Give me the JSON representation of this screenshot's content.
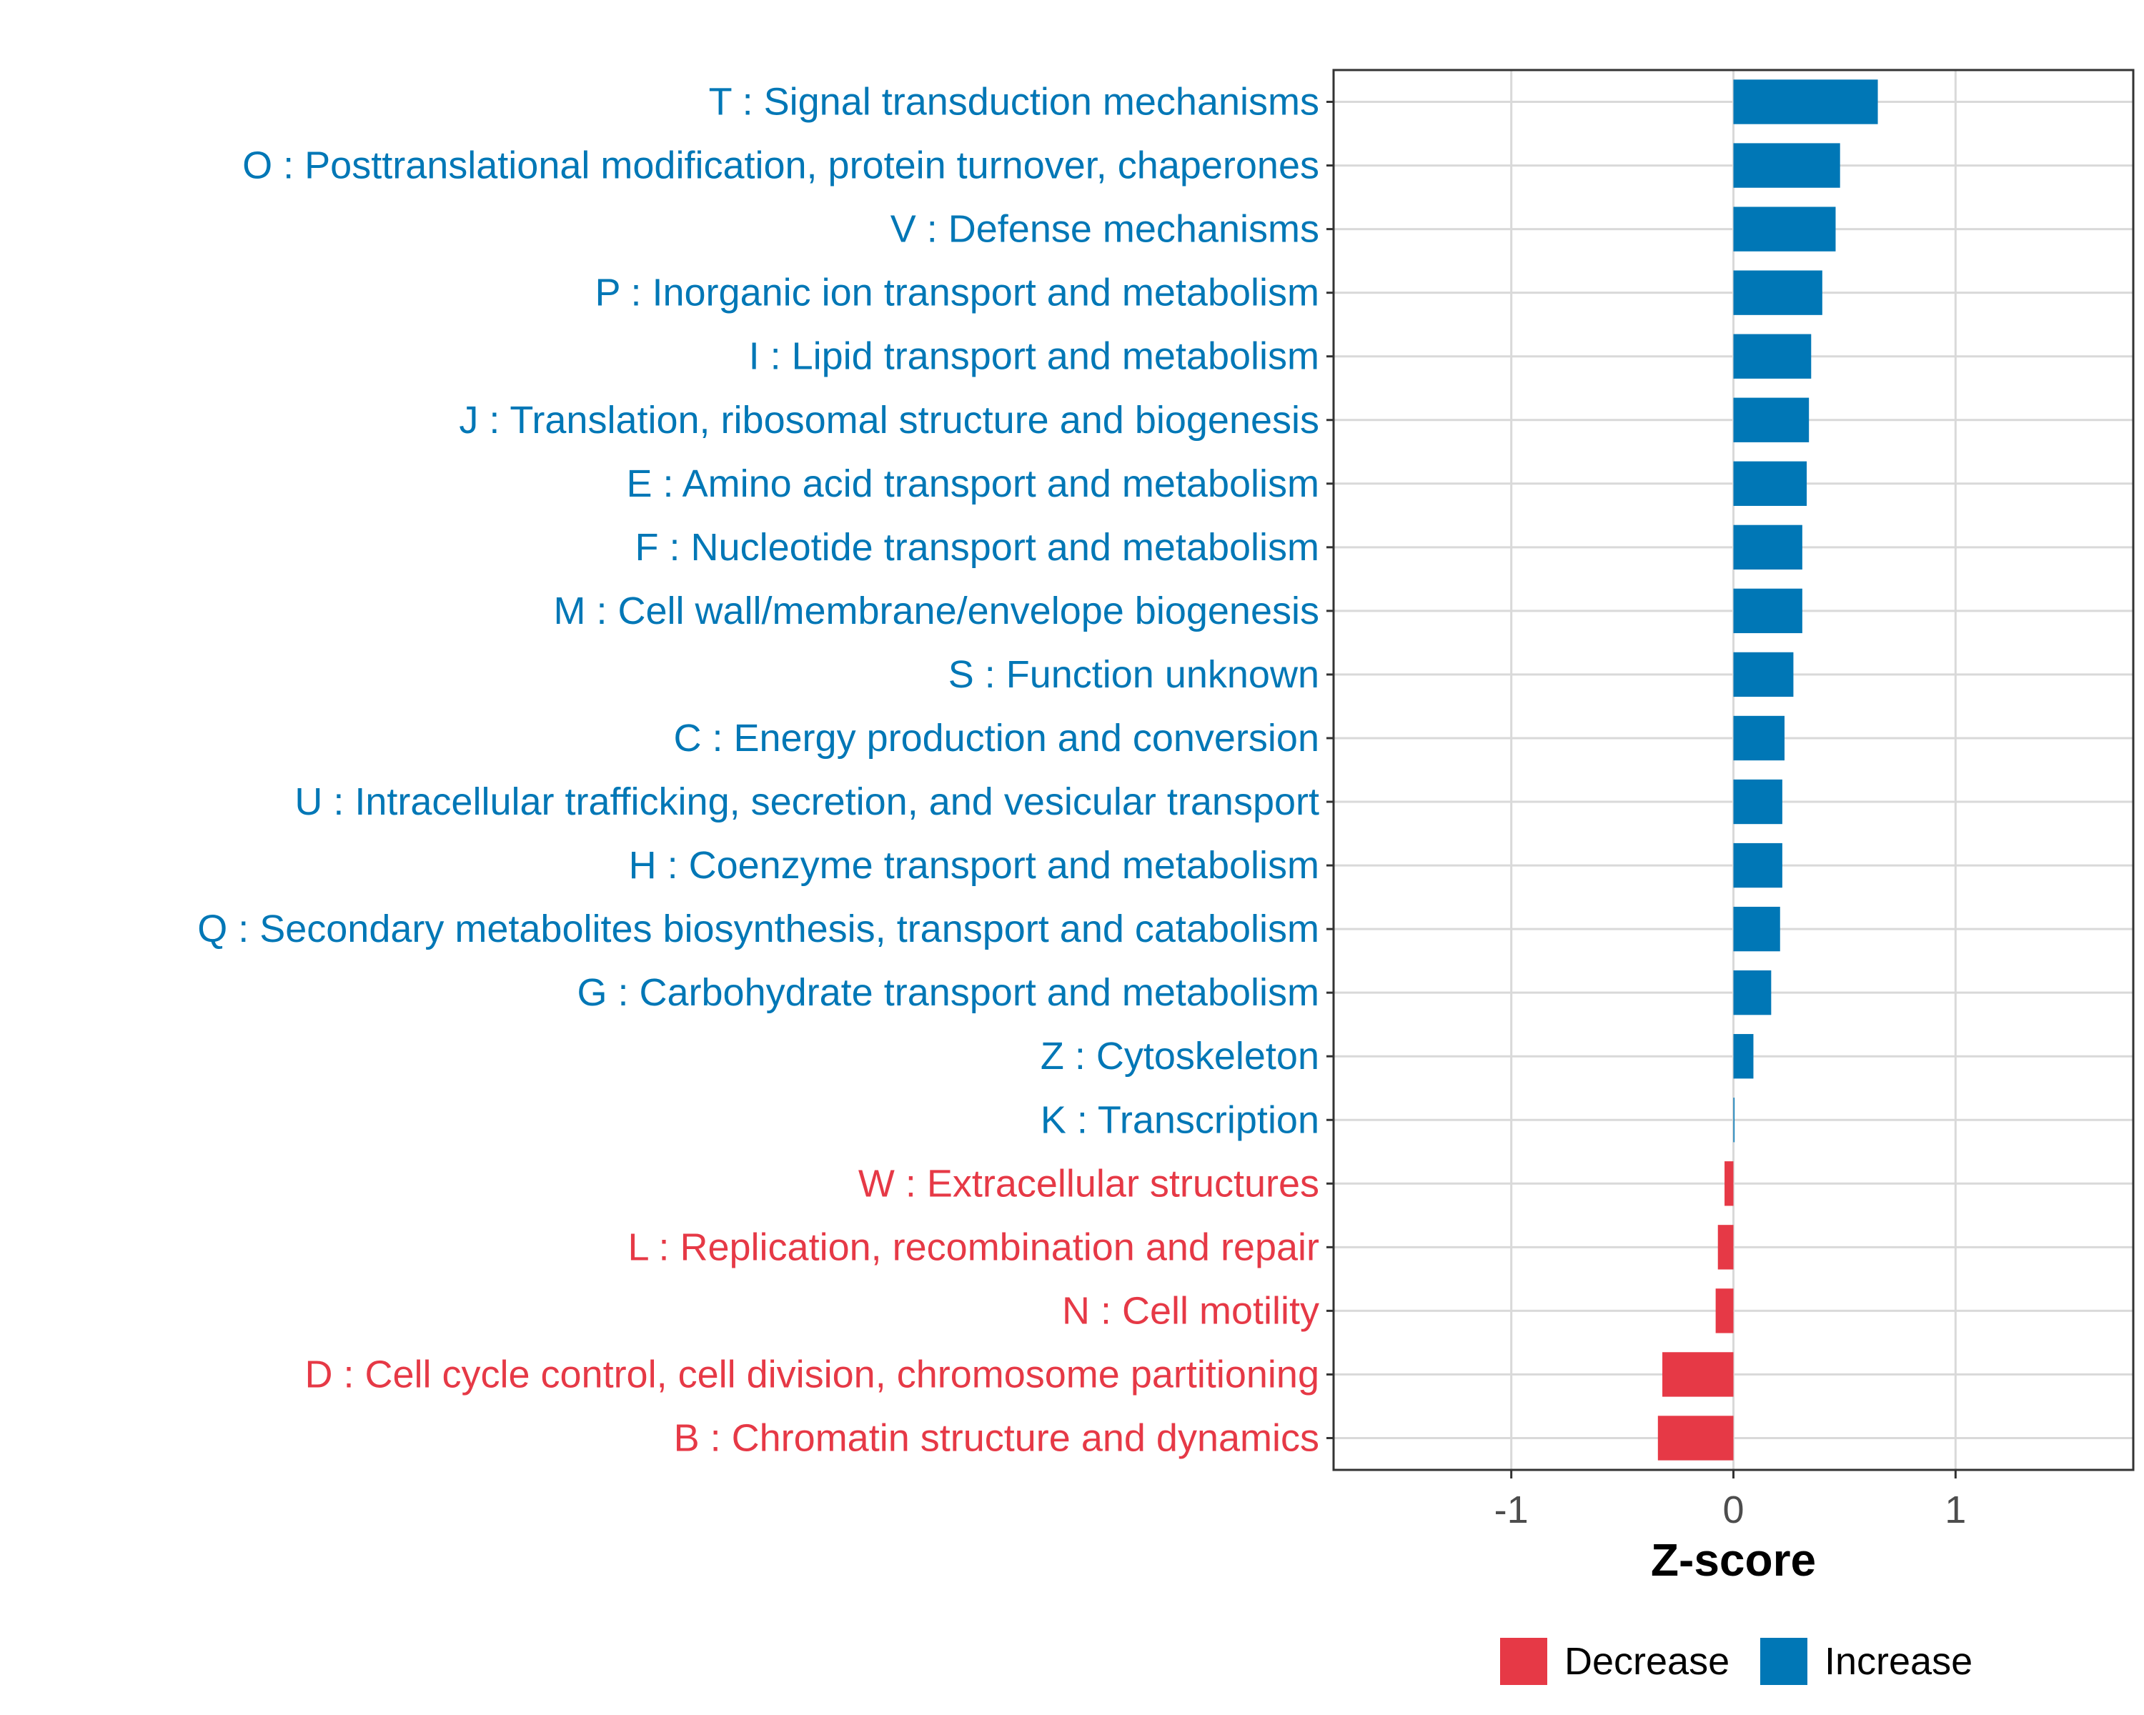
{
  "chart_data": {
    "type": "bar",
    "orientation": "horizontal",
    "title": "",
    "xlabel": "Z-score",
    "ylabel": "",
    "xlim": [
      -1.8,
      1.8
    ],
    "xticks": [
      -1,
      0,
      1
    ],
    "xtick_labels": [
      "-1",
      "0",
      "1"
    ],
    "grid": true,
    "legend_position": "bottom",
    "colors": {
      "Decrease": "#E63946",
      "Increase": "#0077B6"
    },
    "categories": [
      "T : Signal transduction mechanisms",
      "O : Posttranslational modification, protein turnover, chaperones",
      "V : Defense mechanisms",
      "P : Inorganic ion transport and metabolism",
      "I : Lipid transport and metabolism",
      "J : Translation, ribosomal structure and biogenesis",
      "E : Amino acid transport and metabolism",
      "F : Nucleotide transport and metabolism",
      "M : Cell wall/membrane/envelope biogenesis",
      "S : Function unknown",
      "C : Energy production and conversion",
      "U : Intracellular trafficking, secretion, and vesicular transport",
      "H : Coenzyme transport and metabolism",
      "Q : Secondary metabolites biosynthesis, transport and catabolism",
      "G : Carbohydrate transport and metabolism",
      "Z : Cytoskeleton",
      "K : Transcription",
      "W : Extracellular structures",
      "L : Replication, recombination and repair",
      "N : Cell motility",
      "D : Cell cycle control, cell division, chromosome partitioning",
      "B : Chromatin structure and dynamics"
    ],
    "values": [
      0.65,
      0.48,
      0.46,
      0.4,
      0.35,
      0.34,
      0.33,
      0.31,
      0.31,
      0.27,
      0.23,
      0.22,
      0.22,
      0.21,
      0.17,
      0.09,
      0.005,
      -0.04,
      -0.07,
      -0.08,
      -0.32,
      -0.34
    ],
    "groups": [
      "Increase",
      "Increase",
      "Increase",
      "Increase",
      "Increase",
      "Increase",
      "Increase",
      "Increase",
      "Increase",
      "Increase",
      "Increase",
      "Increase",
      "Increase",
      "Increase",
      "Increase",
      "Increase",
      "Increase",
      "Decrease",
      "Decrease",
      "Decrease",
      "Decrease",
      "Decrease"
    ],
    "legend": [
      "Decrease",
      "Increase"
    ]
  }
}
